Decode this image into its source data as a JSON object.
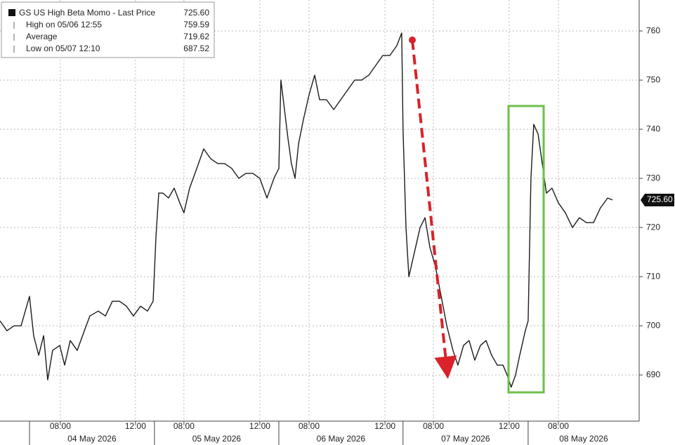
{
  "chart_data": {
    "type": "line",
    "series": [
      {
        "name": "GS US High Beta Momo - Last Price",
        "color": "#1c1c1c",
        "x": [
          -1.57,
          -1.2,
          -0.82,
          -0.45,
          0,
          0.22,
          0.49,
          0.75,
          0.97,
          1.23,
          1.61,
          1.87,
          2.17,
          2.54,
          2.92,
          3.21,
          3.66,
          4.04,
          4.41,
          4.79,
          5.16,
          5.53,
          5.91,
          6.28,
          6.58,
          6.73,
          6.88,
          7.1,
          7.4,
          7.7,
          8,
          8.22,
          8.52,
          8.9,
          9.27,
          9.64,
          10.02,
          10.39,
          10.77,
          11.14,
          11.51,
          11.89,
          12.26,
          12.64,
          13.01,
          13.27,
          13.38,
          13.57,
          13.76,
          13.94,
          14.13,
          14.32,
          14.58,
          14.88,
          15.18,
          15.44,
          15.81,
          16.19,
          16.56,
          16.93,
          17.31,
          17.68,
          18.06,
          18.43,
          18.8,
          19.18,
          19.55,
          19.81,
          19.88,
          20.04,
          20.19,
          20.49,
          20.79,
          21.05,
          21.31,
          21.61,
          21.91,
          22.21,
          22.54,
          22.8,
          23.1,
          23.4,
          23.7,
          24,
          24.3,
          24.6,
          24.9,
          25.2,
          25.42,
          25.64,
          25.87,
          26.09,
          26.39,
          26.54,
          26.69,
          26.84,
          27.07,
          27.29,
          27.51,
          27.81,
          28.15,
          28.52,
          28.9,
          29.27,
          29.64,
          30.02,
          30.39,
          30.77,
          31.03
        ],
        "values": [
          701,
          699,
          700,
          700,
          706,
          698,
          694,
          698,
          689,
          695,
          696,
          692,
          697,
          695,
          699,
          702,
          703,
          702,
          705,
          705,
          704,
          702,
          704,
          703,
          705,
          718,
          727,
          727,
          726,
          728,
          725,
          723,
          728,
          732,
          736,
          734,
          733,
          733,
          732,
          730,
          731,
          731,
          730,
          726,
          730,
          732,
          750,
          744,
          738,
          733,
          730,
          737,
          742,
          747,
          751,
          746,
          746,
          744,
          746,
          748,
          750,
          750,
          751,
          753,
          755,
          755,
          757,
          759.59,
          740,
          720,
          710,
          715,
          720,
          722,
          716,
          712,
          706,
          700,
          695,
          692,
          696,
          697,
          693,
          696,
          697,
          694,
          692,
          692,
          690,
          687.52,
          690,
          694,
          699,
          701,
          730,
          741,
          739,
          733,
          727,
          728,
          725,
          723,
          720,
          722,
          721,
          721,
          724,
          726,
          725.6
        ]
      }
    ],
    "last": {
      "value": 725.6,
      "label": "725.60"
    },
    "stats": [
      {
        "label": "High on 05/06 12:55",
        "value": 759.59
      },
      {
        "label": "Average",
        "value": 719.62
      },
      {
        "label": "Low on 05/07 12:10",
        "value": 687.52
      }
    ],
    "xlim": [
      -1.57,
      32.45
    ],
    "xticks": [
      {
        "value": 1.64,
        "label": "08:00"
      },
      {
        "value": 5.64,
        "label": "12:00"
      },
      {
        "value": 8.22,
        "label": "08:00"
      },
      {
        "value": 12.26,
        "label": "12:00"
      },
      {
        "value": 14.88,
        "label": "08:00"
      },
      {
        "value": 18.92,
        "label": "12:00"
      },
      {
        "value": 21.5,
        "label": "08:00"
      },
      {
        "value": 25.53,
        "label": "12:00"
      },
      {
        "value": 28.15,
        "label": "08:00"
      }
    ],
    "day_ticks": [
      {
        "value": 0,
        "label": "04 May 2026"
      },
      {
        "value": 6.65,
        "label": "05 May 2026"
      },
      {
        "value": 13.27,
        "label": "06 May 2026"
      },
      {
        "value": 19.88,
        "label": "07 May 2026"
      },
      {
        "value": 26.54,
        "label": "08 May 2026"
      }
    ],
    "ylim": [
      680.6,
      766.3
    ],
    "yticks": [
      690,
      700,
      710,
      720,
      730,
      740,
      750,
      760
    ],
    "grid": true
  }
}
